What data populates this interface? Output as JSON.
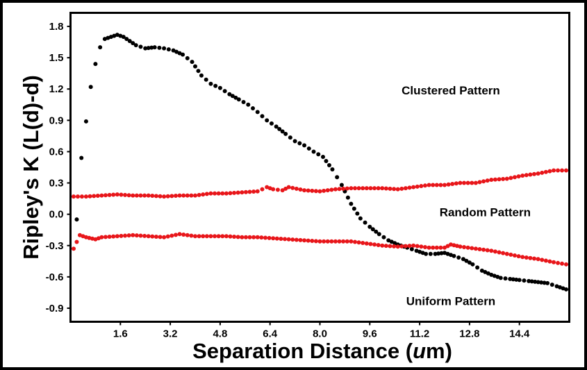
{
  "chart_data": {
    "type": "scatter",
    "title": "",
    "xlabel_parts": [
      "Separation Distance (",
      "u",
      "m)"
    ],
    "ylabel": "Ripley's K (L(d)-d)",
    "xlim": [
      0.0,
      16.0
    ],
    "ylim": [
      -1.03,
      1.93
    ],
    "xticks": [
      1.6,
      3.2,
      4.8,
      6.4,
      8.0,
      9.6,
      11.2,
      12.8,
      14.4
    ],
    "xtick_labels": [
      "1.6",
      "3.2",
      "4.8",
      "6.4",
      "8.0",
      "9.6",
      "11.2",
      "12.8",
      "14.4"
    ],
    "yticks": [
      1.8,
      1.5,
      1.2,
      0.9,
      0.6,
      0.3,
      0.0,
      -0.3,
      -0.6,
      -0.9
    ],
    "ytick_labels": [
      "1.8",
      "1.5",
      "1.2",
      "0.9",
      "0.6",
      "0.3",
      "0.0",
      "-0.3",
      "-0.6",
      "-0.9"
    ],
    "grid": false,
    "annotations": [
      {
        "text": "Clustered Pattern",
        "x": 12.2,
        "y": 1.19
      },
      {
        "text": "Random Pattern",
        "x": 13.3,
        "y": 0.02
      },
      {
        "text": "Uniform Pattern",
        "x": 12.2,
        "y": -0.83
      }
    ],
    "series": [
      {
        "name": "Clustered Pattern",
        "color": "#000000",
        "x": [
          0.2,
          0.35,
          0.5,
          0.65,
          0.8,
          0.95,
          1.1,
          1.3,
          1.5,
          1.7,
          1.9,
          2.1,
          2.4,
          2.7,
          3.0,
          3.3,
          3.6,
          3.9,
          4.2,
          4.5,
          4.8,
          5.1,
          5.4,
          5.7,
          6.0,
          6.3,
          6.6,
          6.9,
          7.2,
          7.5,
          7.8,
          8.1,
          8.4,
          8.7,
          9.0,
          9.3,
          9.6,
          9.9,
          10.2,
          10.5,
          10.8,
          11.1,
          11.4,
          11.7,
          12.0,
          12.3,
          12.6,
          12.9,
          13.2,
          13.5,
          13.8,
          14.1,
          14.4,
          14.7,
          15.0,
          15.3,
          15.6,
          15.9
        ],
        "y": [
          -0.05,
          0.54,
          0.89,
          1.22,
          1.44,
          1.6,
          1.68,
          1.7,
          1.72,
          1.7,
          1.66,
          1.62,
          1.59,
          1.6,
          1.59,
          1.57,
          1.53,
          1.46,
          1.33,
          1.25,
          1.21,
          1.15,
          1.1,
          1.05,
          0.98,
          0.9,
          0.84,
          0.77,
          0.7,
          0.66,
          0.6,
          0.55,
          0.43,
          0.28,
          0.1,
          -0.04,
          -0.12,
          -0.19,
          -0.25,
          -0.29,
          -0.32,
          -0.35,
          -0.38,
          -0.38,
          -0.37,
          -0.4,
          -0.43,
          -0.48,
          -0.54,
          -0.58,
          -0.61,
          -0.62,
          -0.63,
          -0.64,
          -0.65,
          -0.66,
          -0.69,
          -0.72
        ]
      },
      {
        "name": "Random Pattern",
        "color": "#e8161a",
        "x": [
          0.1,
          0.5,
          1.0,
          1.5,
          2.0,
          2.5,
          3.0,
          3.5,
          4.0,
          4.5,
          5.0,
          5.5,
          6.0,
          6.3,
          6.5,
          6.8,
          7.0,
          7.5,
          8.0,
          8.5,
          9.0,
          9.5,
          10.0,
          10.5,
          11.0,
          11.5,
          12.0,
          12.5,
          13.0,
          13.5,
          14.0,
          14.5,
          15.0,
          15.5,
          15.9
        ],
        "y": [
          0.17,
          0.17,
          0.18,
          0.19,
          0.18,
          0.18,
          0.17,
          0.18,
          0.18,
          0.2,
          0.2,
          0.21,
          0.22,
          0.26,
          0.24,
          0.23,
          0.26,
          0.23,
          0.22,
          0.24,
          0.25,
          0.25,
          0.25,
          0.24,
          0.26,
          0.28,
          0.28,
          0.3,
          0.3,
          0.33,
          0.34,
          0.37,
          0.39,
          0.42,
          0.42
        ]
      },
      {
        "name": "Uniform Pattern",
        "color": "#e8161a",
        "x": [
          0.1,
          0.3,
          0.5,
          0.8,
          1.0,
          1.5,
          2.0,
          2.5,
          3.0,
          3.5,
          4.0,
          4.5,
          5.0,
          5.5,
          6.0,
          6.5,
          7.0,
          7.5,
          8.0,
          8.5,
          9.0,
          9.5,
          10.0,
          10.5,
          11.0,
          11.5,
          12.0,
          12.2,
          12.5,
          13.0,
          13.5,
          14.0,
          14.5,
          15.0,
          15.5,
          15.9
        ],
        "y": [
          -0.33,
          -0.2,
          -0.22,
          -0.24,
          -0.22,
          -0.21,
          -0.2,
          -0.21,
          -0.22,
          -0.19,
          -0.21,
          -0.21,
          -0.21,
          -0.22,
          -0.22,
          -0.23,
          -0.24,
          -0.25,
          -0.26,
          -0.26,
          -0.26,
          -0.28,
          -0.3,
          -0.31,
          -0.3,
          -0.32,
          -0.32,
          -0.29,
          -0.31,
          -0.33,
          -0.35,
          -0.38,
          -0.41,
          -0.43,
          -0.46,
          -0.48
        ]
      }
    ]
  }
}
